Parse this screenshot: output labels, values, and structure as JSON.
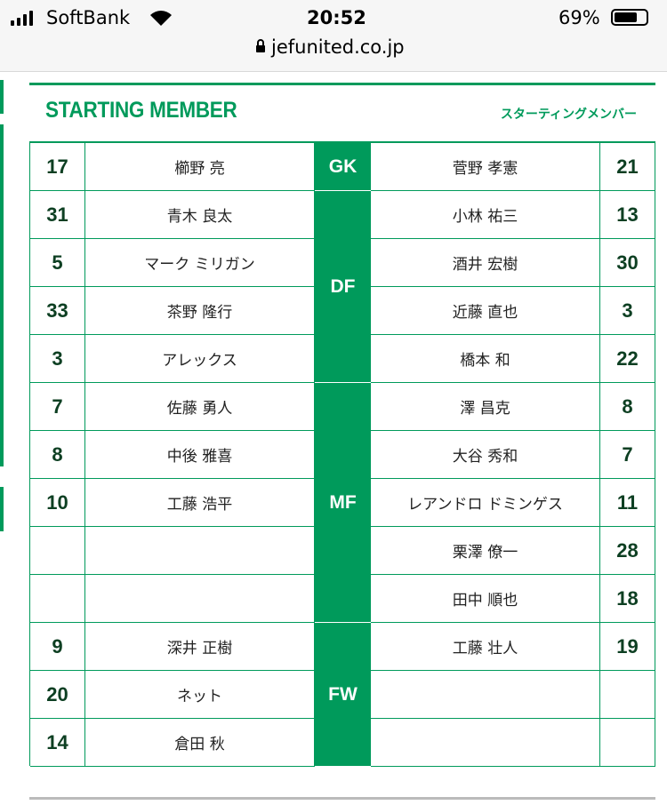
{
  "status_bar": {
    "carrier": "SoftBank",
    "time": "20:52",
    "battery": "69%"
  },
  "url_bar": {
    "url": "jefunited.co.jp"
  },
  "header": {
    "title": "STARTING MEMBER",
    "subtitle": "スターティングメンバー"
  },
  "table": {
    "groups": [
      {
        "position": "GK",
        "rows": [
          {
            "left": {
              "number": 17,
              "name": "櫛野 亮"
            },
            "right": {
              "name": "菅野 孝憲",
              "number": 21
            }
          }
        ]
      },
      {
        "position": "DF",
        "rows": [
          {
            "left": {
              "number": 31,
              "name": "青木 良太"
            },
            "right": {
              "name": "小林 祐三",
              "number": 13
            }
          },
          {
            "left": {
              "number": 5,
              "name": "マーク ミリガン"
            },
            "right": {
              "name": "酒井 宏樹",
              "number": 30
            }
          },
          {
            "left": {
              "number": 33,
              "name": "茶野 隆行"
            },
            "right": {
              "name": "近藤 直也",
              "number": 3
            }
          },
          {
            "left": {
              "number": 3,
              "name": "アレックス"
            },
            "right": {
              "name": "橋本 和",
              "number": 22
            }
          }
        ]
      },
      {
        "position": "MF",
        "rows": [
          {
            "left": {
              "number": 7,
              "name": "佐藤 勇人"
            },
            "right": {
              "name": "澤 昌克",
              "number": 8
            }
          },
          {
            "left": {
              "number": 8,
              "name": "中後 雅喜"
            },
            "right": {
              "name": "大谷 秀和",
              "number": 7
            }
          },
          {
            "left": {
              "number": 10,
              "name": "工藤 浩平"
            },
            "right": {
              "name": "レアンドロ ドミンゲス",
              "number": 11
            }
          },
          {
            "left": null,
            "right": {
              "name": "栗澤 僚一",
              "number": 28
            }
          },
          {
            "left": null,
            "right": {
              "name": "田中 順也",
              "number": 18
            }
          }
        ]
      },
      {
        "position": "FW",
        "rows": [
          {
            "left": {
              "number": 9,
              "name": "深井 正樹"
            },
            "right": {
              "name": "工藤 壮人",
              "number": 19
            }
          },
          {
            "left": {
              "number": 20,
              "name": "ネット"
            },
            "right": null
          },
          {
            "left": {
              "number": 14,
              "name": "倉田 秋"
            },
            "right": null
          }
        ]
      }
    ]
  }
}
